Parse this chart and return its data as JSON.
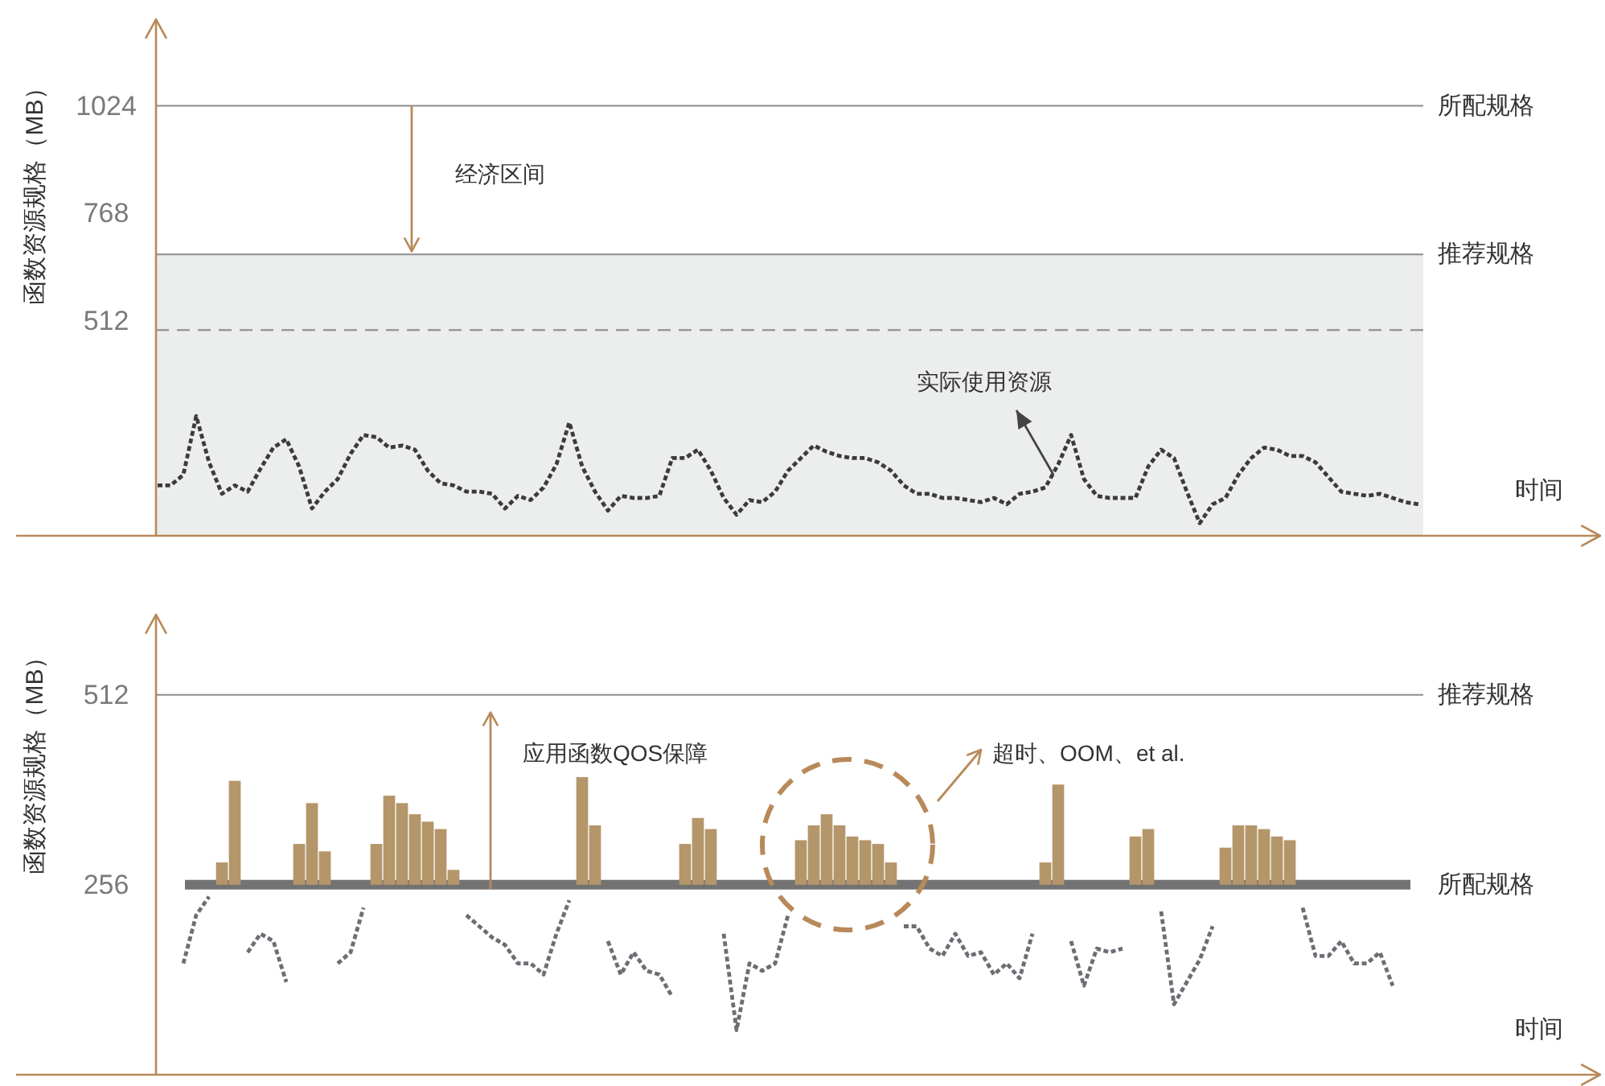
{
  "chart_data": [
    {
      "type": "line",
      "xlabel": "时间",
      "ylabel": "函数资源规格（MB）",
      "tick_labels": "y",
      "line_style": "dashed",
      "categories": [
        null,
        null,
        null,
        null,
        null,
        null,
        null,
        null,
        null,
        null,
        null,
        null,
        null,
        null,
        null,
        null,
        null,
        null,
        null,
        null,
        null,
        null,
        null,
        null,
        null,
        null,
        null,
        null,
        null,
        null,
        null,
        null,
        null,
        null,
        null,
        null,
        null,
        null,
        null,
        null,
        null,
        null,
        null,
        null,
        null,
        null,
        null,
        null,
        null,
        null,
        null,
        null,
        null,
        null,
        null,
        null,
        null,
        null,
        null,
        null,
        null,
        null,
        null,
        null,
        null,
        null,
        null,
        null,
        null,
        null,
        null,
        null,
        null,
        null,
        null,
        null,
        null,
        null,
        null,
        null,
        null,
        null,
        null,
        null,
        null,
        null,
        null,
        null,
        null,
        null,
        null,
        null,
        null,
        null,
        null,
        null,
        null,
        null,
        null
      ],
      "series": [
        {
          "color": "#3b3b3b",
          "values": [
            120,
            120,
            145,
            285,
            175,
            100,
            120,
            105,
            160,
            210,
            230,
            165,
            65,
            105,
            135,
            195,
            240,
            235,
            210,
            215,
            205,
            155,
            125,
            120,
            105,
            105,
            100,
            65,
            95,
            85,
            115,
            170,
            270,
            165,
            105,
            60,
            95,
            90,
            90,
            95,
            185,
            185,
            205,
            155,
            90,
            50,
            85,
            80,
            105,
            155,
            185,
            215,
            200,
            190,
            185,
            185,
            175,
            155,
            120,
            100,
            100,
            90,
            90,
            85,
            80,
            90,
            75,
            100,
            105,
            115,
            170,
            240,
            135,
            95,
            90,
            90,
            90,
            165,
            205,
            185,
            105,
            30,
            75,
            90,
            145,
            185,
            210,
            205,
            190,
            190,
            175,
            140,
            105,
            100,
            95,
            100,
            90,
            80,
            75
          ]
        }
      ],
      "ylim": [
        0,
        1230
      ],
      "yticks": [
        512,
        768,
        1024
      ],
      "bands": [
        {
          "axis": "y",
          "from": 0,
          "to": 670,
          "color": "#eceeed"
        }
      ],
      "ref_lines": [
        {
          "axis": "y",
          "value": 1024,
          "label": "所配规格",
          "color": "#8c8c8c"
        },
        {
          "axis": "y",
          "value": 670,
          "label": "推荐规格",
          "color": "#8c8c8c"
        },
        {
          "axis": "y",
          "value": 490,
          "color": "#9a9a9a",
          "line_style": "dashed"
        }
      ],
      "annotations": [
        "经济区间",
        "实际使用资源"
      ]
    },
    {
      "type": "line",
      "xlabel": "时间",
      "ylabel": "函数资源规格（MB）",
      "tick_labels": "y",
      "line_style": "dashed",
      "categories": [
        null,
        null,
        null,
        null,
        null,
        null,
        null,
        null,
        null,
        null,
        null,
        null,
        null,
        null,
        null,
        null,
        null,
        null,
        null,
        null,
        null,
        null,
        null,
        null,
        null,
        null,
        null,
        null,
        null,
        null,
        null,
        null,
        null,
        null,
        null,
        null,
        null,
        null,
        null,
        null,
        null,
        null,
        null,
        null,
        null,
        null,
        null,
        null,
        null,
        null,
        null,
        null,
        null,
        null,
        null,
        null,
        null,
        null,
        null,
        null,
        null,
        null,
        null,
        null,
        null,
        null,
        null,
        null,
        null,
        null,
        null,
        null,
        null,
        null,
        null,
        null,
        null,
        null,
        null,
        null,
        null,
        null,
        null,
        null,
        null,
        null,
        null,
        null,
        null,
        null,
        null,
        null,
        null,
        null,
        null,
        null,
        null,
        null,
        null
      ],
      "series": [
        {
          "color": "#6b6e74",
          "values": [
            null,
            null,
            150,
            215,
            240,
            null,
            null,
            165,
            190,
            180,
            125,
            null,
            null,
            null,
            150,
            165,
            225,
            null,
            null,
            null,
            null,
            null,
            null,
            null,
            215,
            200,
            185,
            175,
            150,
            150,
            135,
            190,
            235,
            null,
            null,
            180,
            135,
            165,
            140,
            135,
            105,
            null,
            null,
            null,
            190,
            60,
            150,
            140,
            150,
            215,
            null,
            null,
            null,
            null,
            null,
            null,
            null,
            null,
            200,
            200,
            170,
            160,
            190,
            160,
            165,
            135,
            150,
            130,
            190,
            null,
            null,
            180,
            120,
            170,
            165,
            170,
            null,
            null,
            220,
            95,
            125,
            155,
            200,
            null,
            null,
            null,
            null,
            null,
            null,
            225,
            160,
            160,
            180,
            150,
            150,
            165,
            120,
            null,
            null
          ]
        },
        {
          "type": "bar",
          "color": "#b4966a",
          "values": [
            null,
            null,
            null,
            null,
            null,
            30,
            140,
            null,
            null,
            null,
            null,
            55,
            110,
            45,
            null,
            null,
            null,
            55,
            120,
            110,
            95,
            85,
            75,
            20,
            null,
            null,
            null,
            null,
            null,
            null,
            null,
            null,
            null,
            145,
            80,
            null,
            null,
            null,
            null,
            null,
            null,
            55,
            90,
            75,
            null,
            null,
            null,
            null,
            null,
            null,
            60,
            80,
            95,
            80,
            65,
            60,
            55,
            30,
            null,
            null,
            null,
            null,
            null,
            null,
            null,
            null,
            null,
            null,
            null,
            30,
            135,
            null,
            null,
            null,
            null,
            null,
            65,
            75,
            null,
            null,
            null,
            null,
            null,
            50,
            80,
            80,
            75,
            65,
            60,
            null,
            null,
            null,
            null,
            null,
            null,
            null,
            null,
            null,
            null
          ],
          "base": [
            null,
            null,
            null,
            null,
            null,
            256,
            256,
            null,
            null,
            null,
            null,
            256,
            256,
            256,
            null,
            null,
            null,
            256,
            256,
            256,
            256,
            256,
            256,
            256,
            null,
            null,
            null,
            null,
            null,
            null,
            null,
            null,
            null,
            256,
            256,
            null,
            null,
            null,
            null,
            null,
            null,
            256,
            256,
            256,
            null,
            null,
            null,
            null,
            null,
            null,
            256,
            256,
            256,
            256,
            256,
            256,
            256,
            256,
            null,
            null,
            null,
            null,
            null,
            null,
            null,
            null,
            null,
            null,
            null,
            256,
            256,
            null,
            null,
            null,
            null,
            null,
            256,
            256,
            null,
            null,
            null,
            null,
            null,
            256,
            256,
            256,
            256,
            256,
            256,
            null,
            null,
            null,
            null,
            null,
            null,
            null,
            null,
            null,
            null
          ]
        }
      ],
      "ylim": [
        0,
        620
      ],
      "yticks": [
        256,
        512
      ],
      "ref_lines": [
        {
          "axis": "y",
          "value": 512,
          "label": "推荐规格",
          "color": "#8c8c8c"
        },
        {
          "axis": "y",
          "value": 256,
          "label": "所配规格",
          "color": "#737373"
        }
      ],
      "annotations": [
        "应用函数QOS保障",
        "超时、OOM、et al."
      ]
    }
  ]
}
